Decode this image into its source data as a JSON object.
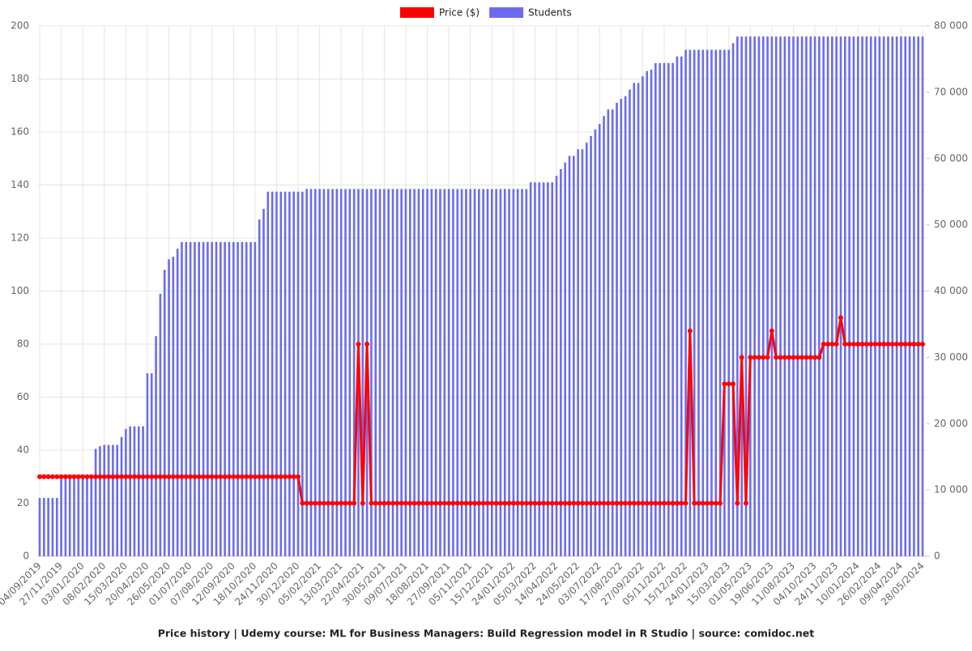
{
  "chart_data": {
    "type": "combo",
    "title": "Price history | Udemy course: ML for Business Managers: Build Regression model in R Studio | source: comidoc.net",
    "categories": [
      "04/09/2019",
      null,
      null,
      null,
      null,
      "27/11/2019",
      null,
      null,
      null,
      null,
      "03/01/2020",
      null,
      null,
      null,
      null,
      "08/02/2020",
      null,
      null,
      null,
      null,
      "15/03/2020",
      null,
      null,
      null,
      null,
      "20/04/2020",
      null,
      null,
      null,
      null,
      "26/05/2020",
      null,
      null,
      null,
      null,
      "01/07/2020",
      null,
      null,
      null,
      null,
      "07/08/2020",
      null,
      null,
      null,
      null,
      "12/09/2020",
      null,
      null,
      null,
      null,
      "18/10/2020",
      null,
      null,
      null,
      null,
      "24/11/2020",
      null,
      null,
      null,
      null,
      "30/12/2020",
      null,
      null,
      null,
      null,
      "05/02/2021",
      null,
      null,
      null,
      null,
      "13/03/2021",
      null,
      null,
      null,
      null,
      "22/04/2021",
      null,
      null,
      null,
      null,
      "30/05/2021",
      null,
      null,
      null,
      null,
      "09/07/2021",
      null,
      null,
      null,
      null,
      "18/08/2021",
      null,
      null,
      null,
      null,
      "27/09/2021",
      null,
      null,
      null,
      null,
      "05/11/2021",
      null,
      null,
      null,
      null,
      "15/12/2021",
      null,
      null,
      null,
      null,
      "24/01/2022",
      null,
      null,
      null,
      null,
      "05/03/2022",
      null,
      null,
      null,
      null,
      "14/04/2022",
      null,
      null,
      null,
      null,
      "24/05/2022",
      null,
      null,
      null,
      null,
      "03/07/2022",
      null,
      null,
      null,
      null,
      "17/08/2022",
      null,
      null,
      null,
      null,
      "27/09/2022",
      null,
      null,
      null,
      null,
      "05/11/2022",
      null,
      null,
      null,
      null,
      "15/12/2022",
      null,
      null,
      null,
      null,
      "24/01/2023",
      null,
      null,
      null,
      null,
      "15/03/2023",
      null,
      null,
      null,
      null,
      "01/05/2023",
      null,
      null,
      null,
      null,
      "19/06/2023",
      null,
      null,
      null,
      null,
      "11/08/2023",
      null,
      null,
      null,
      null,
      "04/10/2023",
      null,
      null,
      null,
      null,
      "24/11/2023",
      null,
      null,
      null,
      null,
      "10/01/2024",
      null,
      null,
      null,
      null,
      "26/02/2024",
      null,
      null,
      null,
      null,
      "09/04/2024",
      null,
      null,
      null,
      null,
      "28/05/2024"
    ],
    "series": [
      {
        "name": "Price ($)",
        "color": "#ff0000",
        "type": "line",
        "values": [
          30,
          30,
          30,
          30,
          30,
          30,
          30,
          30,
          30,
          30,
          30,
          30,
          30,
          30,
          30,
          30,
          30,
          30,
          30,
          30,
          30,
          30,
          30,
          30,
          30,
          30,
          30,
          30,
          30,
          30,
          30,
          30,
          30,
          30,
          30,
          30,
          30,
          30,
          30,
          30,
          30,
          30,
          30,
          30,
          30,
          30,
          30,
          30,
          30,
          30,
          30,
          30,
          30,
          30,
          30,
          30,
          30,
          30,
          30,
          30,
          30,
          20,
          20,
          20,
          20,
          20,
          20,
          20,
          20,
          20,
          20,
          20,
          20,
          20,
          80,
          20,
          80,
          20,
          20,
          20,
          20,
          20,
          20,
          20,
          20,
          20,
          20,
          20,
          20,
          20,
          20,
          20,
          20,
          20,
          20,
          20,
          20,
          20,
          20,
          20,
          20,
          20,
          20,
          20,
          20,
          20,
          20,
          20,
          20,
          20,
          20,
          20,
          20,
          20,
          20,
          20,
          20,
          20,
          20,
          20,
          20,
          20,
          20,
          20,
          20,
          20,
          20,
          20,
          20,
          20,
          20,
          20,
          20,
          20,
          20,
          20,
          20,
          20,
          20,
          20,
          20,
          20,
          20,
          20,
          20,
          20,
          20,
          20,
          20,
          20,
          20,
          85,
          20,
          20,
          20,
          20,
          20,
          20,
          20,
          65,
          65,
          65,
          20,
          75,
          20,
          75,
          75,
          75,
          75,
          75,
          85,
          75,
          75,
          75,
          75,
          75,
          75,
          75,
          75,
          75,
          75,
          75,
          80,
          80,
          80,
          80,
          90,
          80,
          80,
          80,
          80,
          80,
          80,
          80,
          80,
          80,
          80,
          80,
          80,
          80,
          80,
          80,
          80,
          80,
          80,
          80
        ]
      },
      {
        "name": "Students",
        "color": "#6b6bef",
        "type": "bar",
        "axis": "y2",
        "values": [
          8800,
          8800,
          8800,
          8800,
          8800,
          12000,
          12000,
          12000,
          12000,
          12000,
          12000,
          12000,
          12000,
          16200,
          16600,
          16800,
          16800,
          16800,
          16800,
          18000,
          19200,
          19600,
          19600,
          19600,
          19600,
          27600,
          27600,
          33200,
          39600,
          43200,
          44800,
          45200,
          46400,
          47400,
          47400,
          47400,
          47400,
          47400,
          47400,
          47400,
          47400,
          47400,
          47400,
          47400,
          47400,
          47400,
          47400,
          47400,
          47400,
          47400,
          47400,
          50800,
          52400,
          55000,
          55000,
          55000,
          55000,
          55000,
          55000,
          55000,
          55000,
          55000,
          55400,
          55400,
          55400,
          55400,
          55400,
          55400,
          55400,
          55400,
          55400,
          55400,
          55400,
          55400,
          55400,
          55400,
          55400,
          55400,
          55400,
          55400,
          55400,
          55400,
          55400,
          55400,
          55400,
          55400,
          55400,
          55400,
          55400,
          55400,
          55400,
          55400,
          55400,
          55400,
          55400,
          55400,
          55400,
          55400,
          55400,
          55400,
          55400,
          55400,
          55400,
          55400,
          55400,
          55400,
          55400,
          55400,
          55400,
          55400,
          55400,
          55400,
          55400,
          55400,
          56400,
          56400,
          56400,
          56400,
          56400,
          56400,
          57400,
          58400,
          59400,
          60400,
          60400,
          61400,
          61400,
          62400,
          63400,
          64400,
          65200,
          66400,
          67400,
          67400,
          68400,
          69000,
          69400,
          70400,
          71400,
          71400,
          72400,
          73200,
          73400,
          74400,
          74400,
          74400,
          74400,
          74400,
          75400,
          75400,
          76400,
          76400,
          76400,
          76400,
          76400,
          76400,
          76400,
          76400,
          76400,
          76400,
          76400,
          77400,
          78400,
          78400,
          78400,
          78400,
          78400,
          78400,
          78400,
          78400,
          78400,
          78400,
          78400,
          78400,
          78400,
          78400,
          78400,
          78400,
          78400,
          78400,
          78400,
          78400,
          78400,
          78400,
          78400,
          78400,
          78400,
          78400,
          78400,
          78400,
          78400,
          78400,
          78400,
          78400,
          78400,
          78400,
          78400,
          78400,
          78400,
          78400,
          78400,
          78400,
          78400,
          78400,
          78400,
          78400
        ]
      }
    ],
    "ylim": [
      0,
      200
    ],
    "yticks": [
      0,
      20,
      40,
      60,
      80,
      100,
      120,
      140,
      160,
      180,
      200
    ],
    "y2lim": [
      0,
      80000
    ],
    "y2ticks": [
      0,
      {
        "value": 10000,
        "label": "10 000"
      },
      {
        "value": 20000,
        "label": "20 000"
      },
      {
        "value": 30000,
        "label": "30 000"
      },
      {
        "value": 40000,
        "label": "40 000"
      },
      {
        "value": 50000,
        "label": "50 000"
      },
      {
        "value": 60000,
        "label": "60 000"
      },
      {
        "value": 70000,
        "label": "70 000"
      },
      {
        "value": 80000,
        "label": "80 000"
      }
    ],
    "grid": true,
    "legend": "top"
  }
}
